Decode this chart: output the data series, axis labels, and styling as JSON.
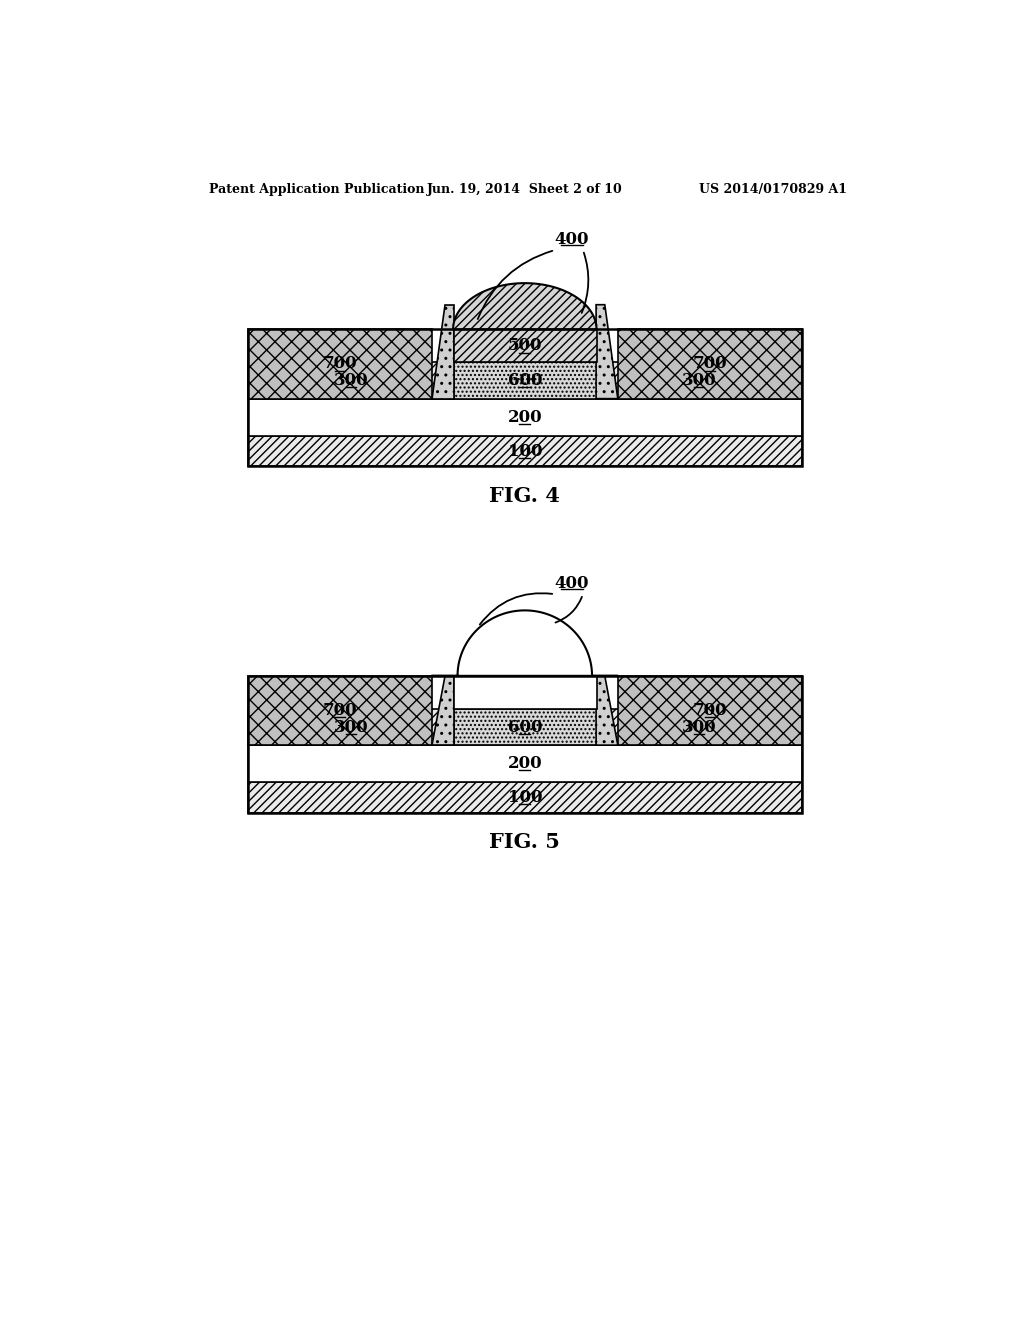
{
  "header_left": "Patent Application Publication",
  "header_mid": "Jun. 19, 2014  Sheet 2 of 10",
  "header_right": "US 2014/0170829 A1",
  "fig4_label": "FIG. 4",
  "fig5_label": "FIG. 5",
  "bg_color": "#ffffff"
}
